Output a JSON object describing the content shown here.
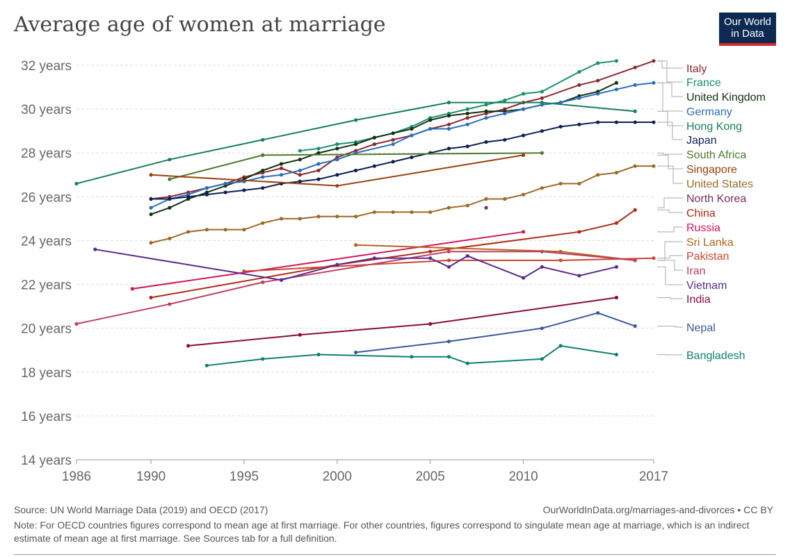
{
  "title": "Average age of women at marriage",
  "logo": {
    "line1": "Our World",
    "line2": "in Data",
    "bg_color": "#0c2a52",
    "accent_color": "#d42b2b"
  },
  "footer": {
    "source": "Source: UN World Marriage Data (2019) and OECD (2017)",
    "credit": "OurWorldInData.org/marriages-and-divorces • CC BY",
    "note": "Note: For OECD countries figures correspond to mean age at first marriage. For other countries, figures correspond to singulate mean age at marriage, which is an indirect estimate of mean age at first marriage. See Sources tab for a full definition."
  },
  "chart_data": {
    "type": "line",
    "title": "Average age of women at marriage",
    "xlim": [
      1986,
      2017
    ],
    "ylim": [
      14,
      32
    ],
    "x_ticks": [
      1986,
      1990,
      1995,
      2000,
      2005,
      2010,
      2017
    ],
    "y_ticks": [
      14,
      16,
      18,
      20,
      22,
      24,
      26,
      28,
      30,
      32
    ],
    "y_tick_format": "{v} years",
    "grid": "horizontal dashed",
    "legend": "right, end labels",
    "series": [
      {
        "name": "Italy",
        "color": "#8a2a30",
        "points": [
          [
            1990,
            25.9
          ],
          [
            1991,
            26.0
          ],
          [
            1992,
            26.2
          ],
          [
            1993,
            26.4
          ],
          [
            1994,
            26.6
          ],
          [
            1995,
            26.9
          ],
          [
            1996,
            27.1
          ],
          [
            1997,
            27.3
          ],
          [
            1998,
            27.0
          ],
          [
            1999,
            27.2
          ],
          [
            2000,
            27.8
          ],
          [
            2001,
            28.1
          ],
          [
            2002,
            28.4
          ],
          [
            2003,
            28.6
          ],
          [
            2004,
            28.8
          ],
          [
            2005,
            29.1
          ],
          [
            2006,
            29.3
          ],
          [
            2007,
            29.6
          ],
          [
            2008,
            29.8
          ],
          [
            2009,
            30.0
          ],
          [
            2010,
            30.3
          ],
          [
            2011,
            30.5
          ],
          [
            2013,
            31.1
          ],
          [
            2014,
            31.3
          ],
          [
            2016,
            31.9
          ],
          [
            2017,
            32.2
          ]
        ]
      },
      {
        "name": "France",
        "color": "#18906a",
        "points": [
          [
            1998,
            28.1
          ],
          [
            1999,
            28.2
          ],
          [
            2000,
            28.4
          ],
          [
            2001,
            28.5
          ],
          [
            2002,
            28.7
          ],
          [
            2003,
            28.9
          ],
          [
            2004,
            29.2
          ],
          [
            2005,
            29.6
          ],
          [
            2006,
            29.8
          ],
          [
            2007,
            30.0
          ],
          [
            2008,
            30.2
          ],
          [
            2009,
            30.4
          ],
          [
            2010,
            30.7
          ],
          [
            2011,
            30.8
          ],
          [
            2013,
            31.7
          ],
          [
            2014,
            32.1
          ],
          [
            2015,
            32.2
          ]
        ]
      },
      {
        "name": "United Kingdom",
        "color": "#11300f",
        "points": [
          [
            1990,
            25.2
          ],
          [
            1991,
            25.5
          ],
          [
            1992,
            25.9
          ],
          [
            1993,
            26.2
          ],
          [
            1994,
            26.5
          ],
          [
            1995,
            26.8
          ],
          [
            1996,
            27.2
          ],
          [
            1997,
            27.5
          ],
          [
            1998,
            27.7
          ],
          [
            1999,
            28.0
          ],
          [
            2000,
            28.2
          ],
          [
            2001,
            28.4
          ],
          [
            2002,
            28.7
          ],
          [
            2003,
            28.9
          ],
          [
            2004,
            29.1
          ],
          [
            2005,
            29.5
          ],
          [
            2006,
            29.7
          ],
          [
            2007,
            29.8
          ],
          [
            2008,
            29.9
          ],
          [
            2009,
            29.9
          ],
          [
            2010,
            30.0
          ],
          [
            2011,
            30.2
          ],
          [
            2012,
            30.3
          ],
          [
            2013,
            30.6
          ],
          [
            2014,
            30.8
          ],
          [
            2015,
            31.2
          ]
        ]
      },
      {
        "name": "Germany",
        "color": "#2a6ebb",
        "points": [
          [
            1990,
            25.5
          ],
          [
            1991,
            25.9
          ],
          [
            1992,
            26.1
          ],
          [
            1993,
            26.4
          ],
          [
            1994,
            26.6
          ],
          [
            1995,
            26.7
          ],
          [
            1996,
            26.9
          ],
          [
            1997,
            27.0
          ],
          [
            1998,
            27.2
          ],
          [
            1999,
            27.5
          ],
          [
            2000,
            27.7
          ],
          [
            2001,
            28.0
          ],
          [
            2003,
            28.4
          ],
          [
            2004,
            28.8
          ],
          [
            2005,
            29.1
          ],
          [
            2006,
            29.1
          ],
          [
            2007,
            29.3
          ],
          [
            2008,
            29.6
          ],
          [
            2009,
            29.8
          ],
          [
            2010,
            30.0
          ],
          [
            2011,
            30.2
          ],
          [
            2012,
            30.3
          ],
          [
            2013,
            30.5
          ],
          [
            2014,
            30.7
          ],
          [
            2015,
            30.9
          ],
          [
            2016,
            31.1
          ],
          [
            2017,
            31.2
          ]
        ]
      },
      {
        "name": "Hong Kong",
        "color": "#15805a",
        "points": [
          [
            1986,
            26.6
          ],
          [
            1991,
            27.7
          ],
          [
            1996,
            28.6
          ],
          [
            2001,
            29.5
          ],
          [
            2006,
            30.3
          ],
          [
            2011,
            30.3
          ],
          [
            2016,
            29.9
          ]
        ]
      },
      {
        "name": "Japan",
        "color": "#0f1f52",
        "points": [
          [
            1990,
            25.9
          ],
          [
            1991,
            25.9
          ],
          [
            1992,
            26.0
          ],
          [
            1993,
            26.1
          ],
          [
            1994,
            26.2
          ],
          [
            1995,
            26.3
          ],
          [
            1996,
            26.4
          ],
          [
            1997,
            26.6
          ],
          [
            1998,
            26.7
          ],
          [
            1999,
            26.8
          ],
          [
            2000,
            27.0
          ],
          [
            2001,
            27.2
          ],
          [
            2002,
            27.4
          ],
          [
            2003,
            27.6
          ],
          [
            2004,
            27.8
          ],
          [
            2005,
            28.0
          ],
          [
            2006,
            28.2
          ],
          [
            2007,
            28.3
          ],
          [
            2008,
            28.5
          ],
          [
            2009,
            28.6
          ],
          [
            2010,
            28.8
          ],
          [
            2011,
            29.0
          ],
          [
            2012,
            29.2
          ],
          [
            2013,
            29.3
          ],
          [
            2014,
            29.4
          ],
          [
            2015,
            29.4
          ],
          [
            2016,
            29.4
          ],
          [
            2017,
            29.4
          ]
        ]
      },
      {
        "name": "South Africa",
        "color": "#4c7a2e",
        "points": [
          [
            1991,
            26.8
          ],
          [
            1996,
            27.9
          ],
          [
            2011,
            28.0
          ]
        ]
      },
      {
        "name": "Singapore",
        "color": "#97410e",
        "points": [
          [
            1990,
            27.0
          ],
          [
            2000,
            26.5
          ],
          [
            2010,
            27.9
          ]
        ]
      },
      {
        "name": "United States",
        "color": "#9a6b26",
        "points": [
          [
            1990,
            23.9
          ],
          [
            1991,
            24.1
          ],
          [
            1992,
            24.4
          ],
          [
            1993,
            24.5
          ],
          [
            1994,
            24.5
          ],
          [
            1995,
            24.5
          ],
          [
            1996,
            24.8
          ],
          [
            1997,
            25.0
          ],
          [
            1998,
            25.0
          ],
          [
            1999,
            25.1
          ],
          [
            2000,
            25.1
          ],
          [
            2001,
            25.1
          ],
          [
            2002,
            25.3
          ],
          [
            2003,
            25.3
          ],
          [
            2004,
            25.3
          ],
          [
            2005,
            25.3
          ],
          [
            2006,
            25.5
          ],
          [
            2007,
            25.6
          ],
          [
            2008,
            25.9
          ],
          [
            2009,
            25.9
          ],
          [
            2010,
            26.1
          ],
          [
            2011,
            26.4
          ],
          [
            2012,
            26.6
          ],
          [
            2013,
            26.6
          ],
          [
            2014,
            27.0
          ],
          [
            2015,
            27.1
          ],
          [
            2016,
            27.4
          ],
          [
            2017,
            27.4
          ]
        ]
      },
      {
        "name": "North Korea",
        "color": "#7a2e5e",
        "points": [
          [
            2008,
            25.5
          ]
        ]
      },
      {
        "name": "China",
        "color": "#b02a14",
        "points": [
          [
            1990,
            21.4
          ],
          [
            2000,
            22.9
          ],
          [
            2005,
            23.5
          ],
          [
            2013,
            24.4
          ],
          [
            2015,
            24.8
          ],
          [
            2016,
            25.4
          ]
        ]
      },
      {
        "name": "Russia",
        "color": "#d4145a",
        "points": [
          [
            1989,
            21.8
          ],
          [
            2010,
            24.4
          ]
        ]
      },
      {
        "name": "Sri Lanka",
        "color": "#b4641e",
        "points": [
          [
            2001,
            23.8
          ],
          [
            2012,
            23.5
          ],
          [
            2016,
            23.1
          ]
        ]
      },
      {
        "name": "Pakistan",
        "color": "#c8462e",
        "points": [
          [
            1995,
            22.6
          ],
          [
            2006,
            23.1
          ],
          [
            2012,
            23.1
          ],
          [
            2017,
            23.2
          ]
        ]
      },
      {
        "name": "Iran",
        "color": "#c04060",
        "points": [
          [
            1986,
            20.2
          ],
          [
            1991,
            21.1
          ],
          [
            1996,
            22.1
          ],
          [
            2006,
            23.5
          ],
          [
            2011,
            23.5
          ],
          [
            2016,
            23.1
          ]
        ]
      },
      {
        "name": "Vietnam",
        "color": "#5b2a8a",
        "points": [
          [
            1987,
            23.6
          ],
          [
            1997,
            22.2
          ],
          [
            2000,
            22.9
          ],
          [
            2002,
            23.2
          ],
          [
            2005,
            23.2
          ],
          [
            2006,
            22.8
          ],
          [
            2007,
            23.3
          ],
          [
            2010,
            22.3
          ],
          [
            2011,
            22.8
          ],
          [
            2013,
            22.4
          ],
          [
            2015,
            22.8
          ]
        ]
      },
      {
        "name": "India",
        "color": "#8b0a3a",
        "points": [
          [
            1992,
            19.2
          ],
          [
            1998,
            19.7
          ],
          [
            2005,
            20.2
          ],
          [
            2015,
            21.4
          ]
        ]
      },
      {
        "name": "Nepal",
        "color": "#3a5a9a",
        "points": [
          [
            2001,
            18.9
          ],
          [
            2006,
            19.4
          ],
          [
            2011,
            20.0
          ],
          [
            2014,
            20.7
          ],
          [
            2016,
            20.1
          ]
        ]
      },
      {
        "name": "Bangladesh",
        "color": "#0e8070",
        "points": [
          [
            1993,
            18.3
          ],
          [
            1996,
            18.6
          ],
          [
            1999,
            18.8
          ],
          [
            2004,
            18.7
          ],
          [
            2006,
            18.7
          ],
          [
            2007,
            18.4
          ],
          [
            2011,
            18.6
          ],
          [
            2012,
            19.2
          ],
          [
            2015,
            18.8
          ]
        ]
      }
    ]
  }
}
